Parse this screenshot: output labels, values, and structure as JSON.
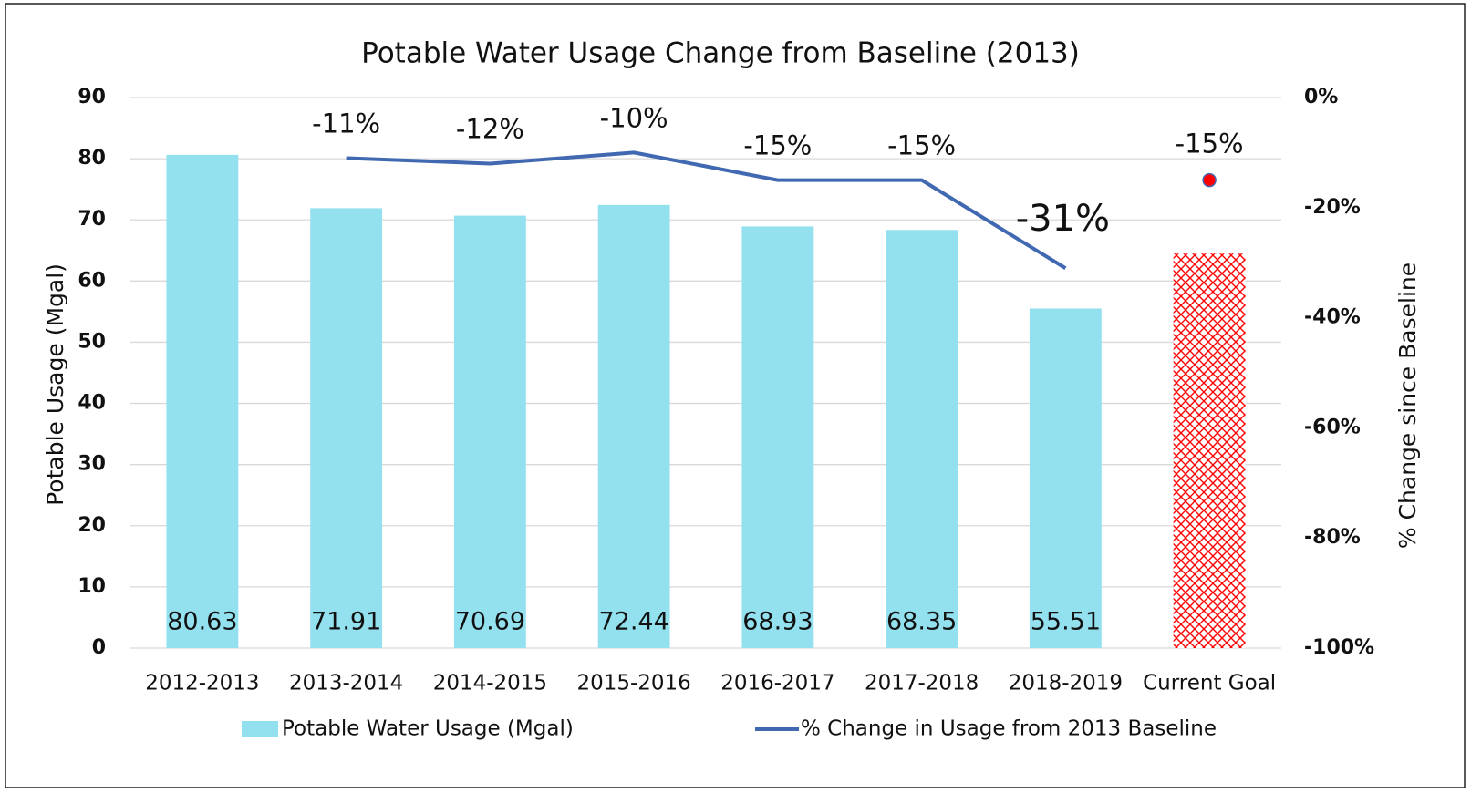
{
  "chart_data": {
    "type": "bar",
    "title": "Potable Water Usage Change from Baseline (2013)",
    "y_label": "Potable Usage (Mgal)",
    "y2_label": "% Change since Baseline",
    "categories": [
      "2012-2013",
      "2013-2014",
      "2014-2015",
      "2015-2016",
      "2016-2017",
      "2017-2018",
      "2018-2019",
      "Current Goal"
    ],
    "series": [
      {
        "name": "Potable Water Usage (Mgal)",
        "type": "bar",
        "color": "#93e1ef",
        "values": [
          80.63,
          71.91,
          70.69,
          72.44,
          68.93,
          68.35,
          55.51,
          null
        ]
      },
      {
        "name": "% Change in Usage from 2013 Baseline",
        "type": "line",
        "axis": "y2",
        "color": "#4169b1",
        "values": [
          null,
          -11,
          -12,
          -10,
          -15,
          -15,
          -31,
          null
        ],
        "value_labels": [
          null,
          "-11%",
          "-12%",
          "-10%",
          "-15%",
          "-15%",
          "-31%",
          null
        ]
      },
      {
        "type": "bar",
        "color": "#ff0000",
        "pattern": "crosshatch",
        "values": [
          null,
          null,
          null,
          null,
          null,
          null,
          null,
          64.5
        ]
      },
      {
        "type": "scatter",
        "axis": "y2",
        "color": "#ff0000",
        "values": [
          null,
          null,
          null,
          null,
          null,
          null,
          null,
          -15
        ],
        "value_labels": [
          null,
          null,
          null,
          null,
          null,
          null,
          null,
          "-15%"
        ]
      }
    ],
    "ylim": [
      0,
      90
    ],
    "yticks": [
      0,
      10,
      20,
      30,
      40,
      50,
      60,
      70,
      80,
      90
    ],
    "y2lim": [
      -100,
      0
    ],
    "y2ticks": [
      {
        "value": 0,
        "label": "0%"
      },
      {
        "value": -20,
        "label": "-20%"
      },
      {
        "value": -40,
        "label": "-40%"
      },
      {
        "value": -60,
        "label": "-60%"
      },
      {
        "value": -80,
        "label": "-80%"
      },
      {
        "value": -100,
        "label": "-100%"
      }
    ],
    "grid": true,
    "legend": "bottom"
  }
}
